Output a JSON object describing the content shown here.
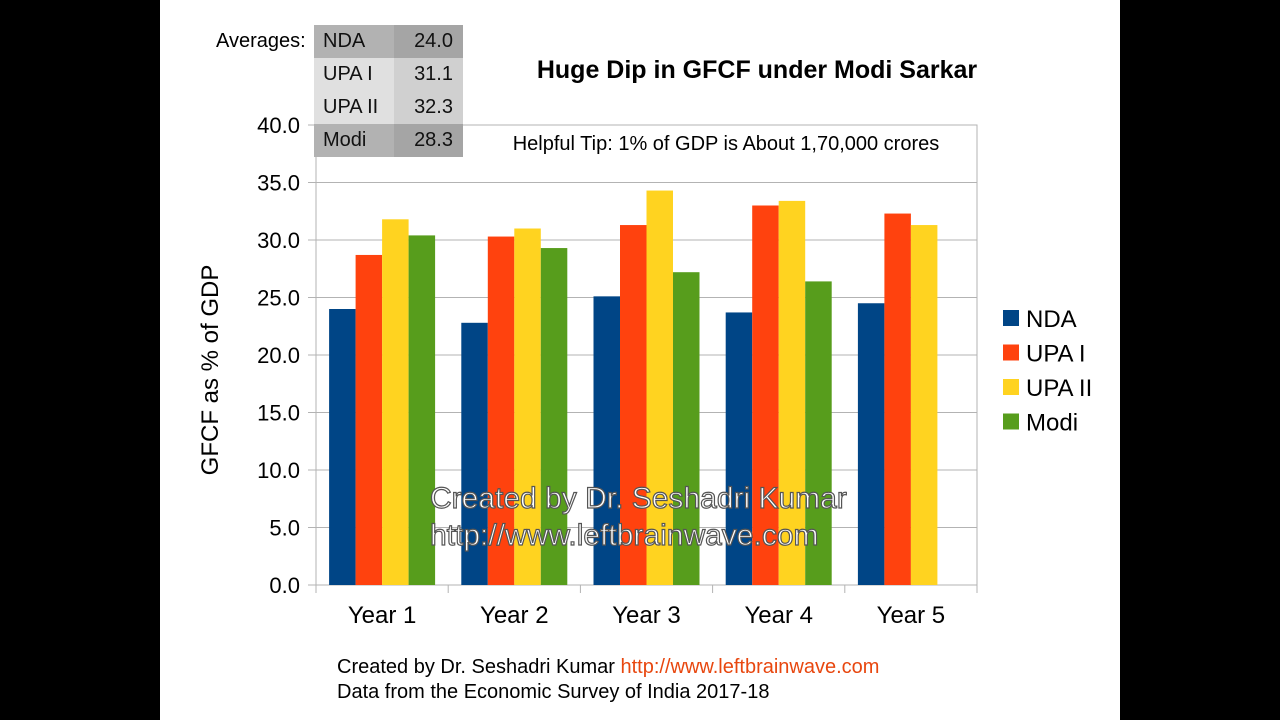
{
  "averages": {
    "label": "Averages:",
    "rows": [
      {
        "name": "NDA",
        "value": "24.0"
      },
      {
        "name": "UPA I",
        "value": "31.1"
      },
      {
        "name": "UPA II",
        "value": "32.3"
      },
      {
        "name": "Modi",
        "value": "28.3"
      }
    ]
  },
  "chart_data": {
    "type": "bar",
    "title": "Huge Dip in GFCF under Modi Sarkar",
    "tip": "Helpful Tip: 1% of GDP is About 1,70,000 crores",
    "ylabel": "GFCF as % of GDP",
    "xlabel": "",
    "ylim": [
      0,
      40
    ],
    "yticks": [
      "0.0",
      "5.0",
      "10.0",
      "15.0",
      "20.0",
      "25.0",
      "30.0",
      "35.0",
      "40.0"
    ],
    "grid": true,
    "legend_position": "right",
    "categories": [
      "Year 1",
      "Year 2",
      "Year 3",
      "Year 4",
      "Year 5"
    ],
    "series": [
      {
        "name": "NDA",
        "color": "#004586",
        "values": [
          24.0,
          22.8,
          25.1,
          23.7,
          24.5
        ]
      },
      {
        "name": "UPA I",
        "color": "#ff420e",
        "values": [
          28.7,
          30.3,
          31.3,
          33.0,
          32.3
        ]
      },
      {
        "name": "UPA II",
        "color": "#ffd320",
        "values": [
          31.8,
          31.0,
          34.3,
          33.4,
          31.3
        ]
      },
      {
        "name": "Modi",
        "color": "#579d1c",
        "values": [
          30.4,
          29.3,
          27.2,
          26.4,
          null
        ]
      }
    ],
    "watermark": [
      "Created by Dr. Seshadri Kumar",
      "http://www.leftbrainwave.com"
    ]
  },
  "footer": {
    "line1_text": "Created by Dr. Seshadri Kumar",
    "line1_link": "http://www.leftbrainwave.com",
    "line2": "Data from the Economic Survey of India 2017-18"
  }
}
